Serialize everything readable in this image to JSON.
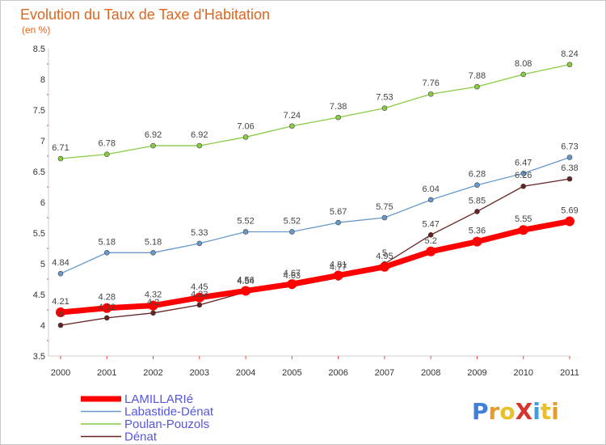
{
  "chart_data": {
    "type": "line",
    "title": "Evolution du Taux de Taxe d'Habitation",
    "subtitle": "(en %)",
    "x": [
      "2000",
      "2001",
      "2002",
      "2003",
      "2004",
      "2005",
      "2006",
      "2007",
      "2008",
      "2009",
      "2010",
      "2011"
    ],
    "ylim": [
      3.5,
      8.5
    ],
    "yticks": [
      "3.5",
      "4",
      "4.5",
      "5",
      "5.5",
      "6",
      "6.5",
      "7",
      "7.5",
      "8",
      "8.5"
    ],
    "grid": false,
    "legend_position": "bottom-left",
    "series": [
      {
        "name": "LAMILLARIé",
        "color": "#ff0000",
        "values": [
          4.21,
          4.28,
          4.32,
          4.45,
          4.56,
          4.67,
          4.81,
          4.95,
          5.2,
          5.36,
          5.55,
          5.69
        ],
        "labels": [
          "4.21",
          "4.28",
          "4.32",
          "4.45",
          "4.56",
          "4.67",
          "4.81",
          "4.95",
          "5.2",
          "5.36",
          "5.55",
          "5.69"
        ]
      },
      {
        "name": "Labastide-Dénat",
        "color": "#6699cc",
        "values": [
          4.84,
          5.18,
          5.18,
          5.33,
          5.52,
          5.52,
          5.67,
          5.75,
          6.04,
          6.28,
          6.47,
          6.73
        ],
        "labels": [
          "4.84",
          "5.18",
          "5.18",
          "5.33",
          "5.52",
          "5.52",
          "5.67",
          "5.75",
          "6.04",
          "6.28",
          "6.47",
          "6.73"
        ]
      },
      {
        "name": "Poulan-Pouzols",
        "color": "#88cc44",
        "values": [
          6.71,
          6.78,
          6.92,
          6.92,
          7.06,
          7.24,
          7.38,
          7.53,
          7.76,
          7.88,
          8.08,
          8.24
        ],
        "labels": [
          "6.71",
          "6.78",
          "6.92",
          "6.92",
          "7.06",
          "7.24",
          "7.38",
          "7.53",
          "7.76",
          "7.88",
          "8.08",
          "8.24"
        ]
      },
      {
        "name": "Dénat",
        "color": "#662222",
        "values": [
          4,
          4.12,
          4.2,
          4.33,
          4.54,
          4.63,
          4.77,
          5,
          5.47,
          5.85,
          6.26,
          6.38
        ],
        "labels": [
          "4",
          "4.12",
          "4.2",
          "4.33",
          "4.54",
          "4.63",
          "4.77",
          "5",
          "5.47",
          "5.85",
          "6.26",
          "6.38"
        ]
      }
    ]
  },
  "logo": {
    "text": "ProXiti"
  }
}
